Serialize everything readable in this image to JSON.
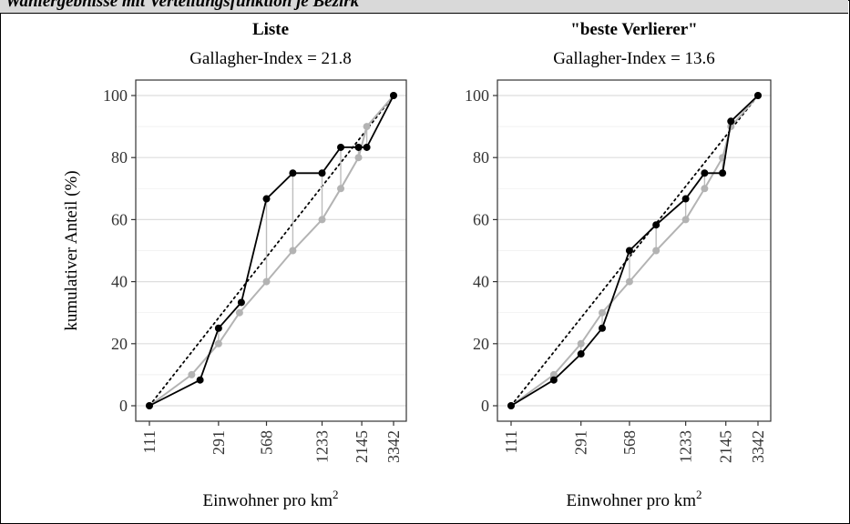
{
  "header": {
    "text": "Wahlergebnisse mit Verteilungsfunktion je Bezirk"
  },
  "chart_data": [
    {
      "type": "line",
      "title": "Liste",
      "subtitle": "Gallagher-Index = 21.8",
      "xlabel": "Einwohner pro km",
      "xlabel_sup": "2",
      "ylabel": "kumulativer Anteil (%)",
      "xscale": "log",
      "xlim": [
        111,
        3342
      ],
      "ylim": [
        0,
        100
      ],
      "xticks": [
        111,
        291,
        568,
        1233,
        2145,
        3342
      ],
      "yticks": [
        0,
        20,
        40,
        60,
        80,
        100
      ],
      "grid": true,
      "reference_line": {
        "name": "diagonal",
        "style": "dotted",
        "color": "#000000"
      },
      "series": [
        {
          "color": "#b3b3b3",
          "x": [
            111,
            200,
            291,
            390,
            568,
            820,
            1233,
            1600,
            2050,
            2300,
            3342
          ],
          "y": [
            0,
            10,
            20,
            30,
            40,
            50,
            60,
            70,
            80,
            90,
            100
          ]
        },
        {
          "color": "#000000",
          "x": [
            111,
            225,
            291,
            400,
            568,
            820,
            1233,
            1600,
            2050,
            2300,
            3342
          ],
          "y": [
            0,
            8.3,
            25,
            33.3,
            66.7,
            75,
            75,
            83.3,
            83.3,
            83.3,
            100
          ]
        }
      ]
    },
    {
      "type": "line",
      "title": "\"beste Verlierer\"",
      "subtitle": "Gallagher-Index = 13.6",
      "xlabel": "Einwohner pro km",
      "xlabel_sup": "2",
      "ylabel": "",
      "xscale": "log",
      "xlim": [
        111,
        3342
      ],
      "ylim": [
        0,
        100
      ],
      "xticks": [
        111,
        291,
        568,
        1233,
        2145,
        3342
      ],
      "yticks": [
        0,
        20,
        40,
        60,
        80,
        100
      ],
      "grid": true,
      "reference_line": {
        "name": "diagonal",
        "style": "dotted",
        "color": "#000000"
      },
      "series": [
        {
          "color": "#b3b3b3",
          "x": [
            111,
            200,
            291,
            390,
            568,
            820,
            1233,
            1600,
            2050,
            2300,
            3342
          ],
          "y": [
            0,
            10,
            20,
            30,
            40,
            50,
            60,
            70,
            80,
            90,
            100
          ]
        },
        {
          "color": "#000000",
          "x": [
            111,
            200,
            291,
            390,
            568,
            820,
            1233,
            1600,
            2050,
            2300,
            3342
          ],
          "y": [
            0,
            8.3,
            16.7,
            25,
            50,
            58.3,
            66.7,
            75,
            75,
            91.7,
            100
          ]
        }
      ]
    }
  ]
}
